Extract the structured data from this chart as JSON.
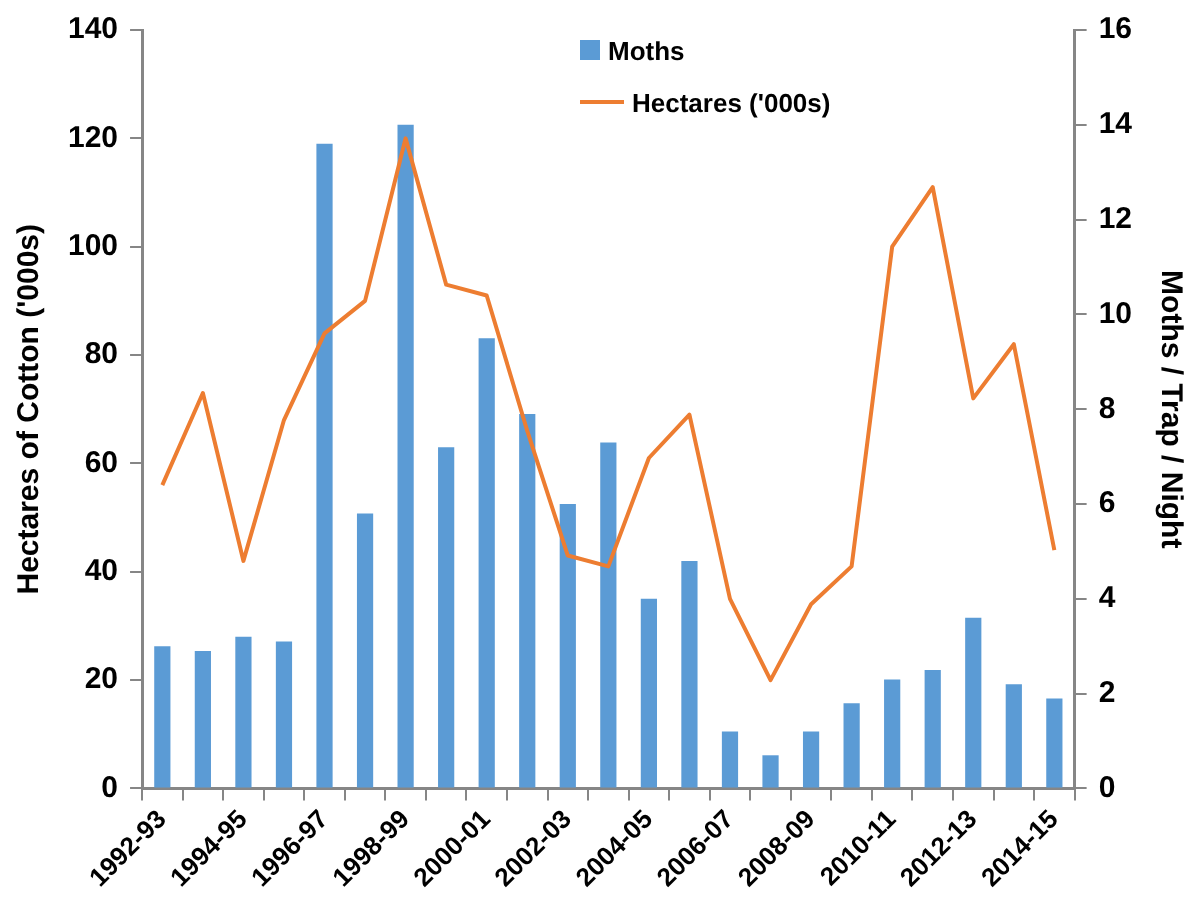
{
  "chart_data": {
    "type": "bar",
    "categories": [
      "1992-93",
      null,
      "1994-95",
      null,
      "1996-97",
      null,
      "1998-99",
      null,
      "2000-01",
      null,
      "2002-03",
      null,
      "2004-05",
      null,
      "2006-07",
      null,
      "2008-09",
      null,
      "2010-11",
      null,
      "2012-13",
      null,
      "2014-15"
    ],
    "series": [
      {
        "name": "Moths",
        "axis": "y2",
        "color": "#5b9bd5",
        "values": [
          3.0,
          2.9,
          3.2,
          3.1,
          13.6,
          5.8,
          14.0,
          7.2,
          9.5,
          7.9,
          6.0,
          7.3,
          4.0,
          4.8,
          1.2,
          0.7,
          1.2,
          1.8,
          2.3,
          2.5,
          3.6,
          2.2,
          1.9
        ]
      },
      {
        "name": "Hectares ('000s)",
        "type": "line",
        "color": "#ed7d31",
        "values": [
          56,
          73,
          42,
          68,
          84,
          90,
          120,
          93,
          91,
          66,
          43,
          41,
          61,
          69,
          35,
          20,
          34,
          41,
          100,
          111,
          72,
          82,
          44
        ]
      }
    ],
    "ylabel": "Hectares of Cotton ('000s)",
    "y2label": "Moths / Trap / Night",
    "ylim": [
      0,
      140
    ],
    "yticks": [
      0,
      20,
      40,
      60,
      80,
      100,
      120,
      140
    ],
    "y2lim": [
      0,
      16
    ],
    "y2ticks": [
      0,
      2,
      4,
      6,
      8,
      10,
      12,
      14,
      16
    ],
    "grid": false,
    "legend": "top",
    "marker": "none"
  }
}
